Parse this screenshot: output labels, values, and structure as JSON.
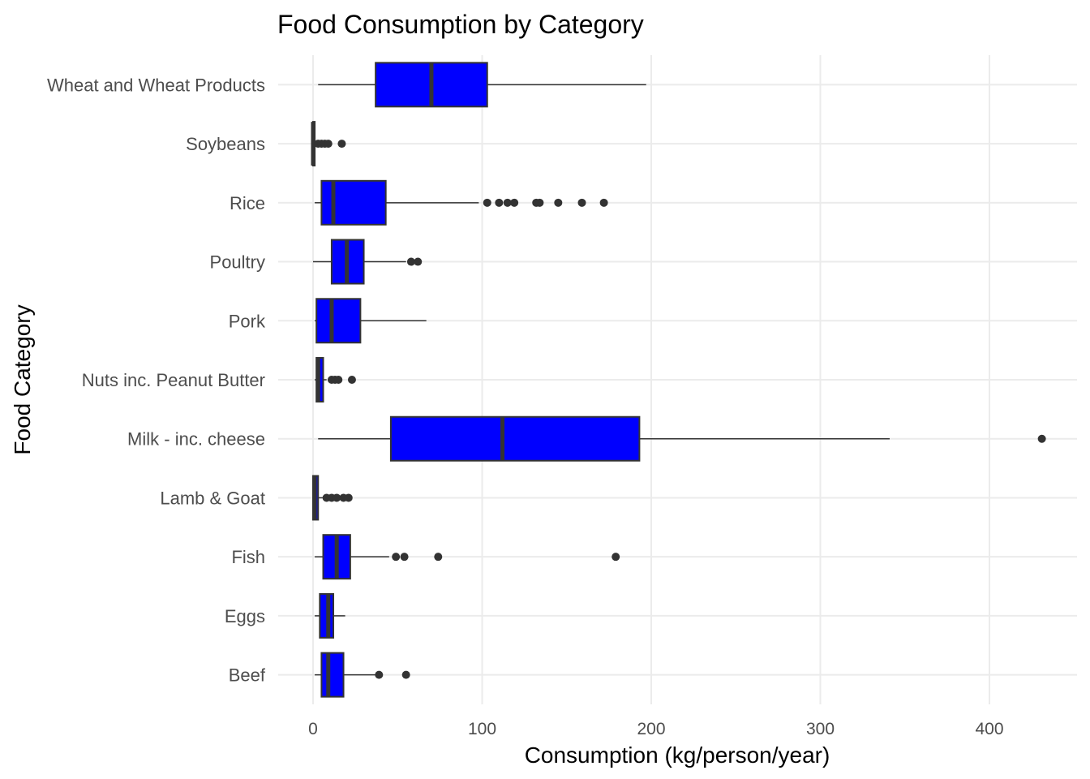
{
  "chart_data": {
    "type": "boxplot",
    "orientation": "horizontal",
    "title": "Food Consumption by Category",
    "xlabel": "Consumption (kg/person/year)",
    "ylabel": "Food Category",
    "xlim": [
      -10,
      452
    ],
    "xticks": [
      0,
      100,
      200,
      300,
      400
    ],
    "grid": true,
    "legend": "none",
    "colors": {
      "box_fill": "#0000ff",
      "box_stroke": "#333333",
      "grid_major": "#ebebeb",
      "grid_minor": "#f4f4f4"
    },
    "categories": [
      "Wheat and Wheat Products",
      "Soybeans",
      "Rice",
      "Poultry",
      "Pork",
      "Nuts inc. Peanut Butter",
      "Milk - inc. cheese",
      "Lamb & Goat",
      "Fish",
      "Eggs",
      "Beef"
    ],
    "boxes": [
      {
        "name": "Wheat and Wheat Products",
        "min": 3,
        "q1": 37,
        "median": 70,
        "q3": 103,
        "max": 197,
        "outliers": []
      },
      {
        "name": "Soybeans",
        "min": 0,
        "q1": 0,
        "median": 0,
        "q3": 1,
        "max": 2,
        "outliers": [
          3,
          5,
          7,
          9,
          17
        ]
      },
      {
        "name": "Rice",
        "min": 1,
        "q1": 5,
        "median": 12,
        "q3": 43,
        "max": 98,
        "outliers": [
          103,
          110,
          115,
          119,
          132,
          134,
          145,
          159,
          172
        ]
      },
      {
        "name": "Poultry",
        "min": 0,
        "q1": 11,
        "median": 20,
        "q3": 30,
        "max": 55,
        "outliers": [
          58,
          62
        ]
      },
      {
        "name": "Pork",
        "min": 1,
        "q1": 2,
        "median": 11,
        "q3": 28,
        "max": 67,
        "outliers": []
      },
      {
        "name": "Nuts inc. Peanut Butter",
        "min": 1,
        "q1": 2,
        "median": 3,
        "q3": 6,
        "max": 8,
        "outliers": [
          11,
          13,
          15,
          23
        ]
      },
      {
        "name": "Milk - inc. cheese",
        "min": 3,
        "q1": 46,
        "median": 112,
        "q3": 193,
        "max": 341,
        "outliers": [
          431
        ]
      },
      {
        "name": "Lamb & Goat",
        "min": 0,
        "q1": 0,
        "median": 1,
        "q3": 3,
        "max": 6,
        "outliers": [
          8,
          11,
          14,
          18,
          21
        ]
      },
      {
        "name": "Fish",
        "min": 1,
        "q1": 6,
        "median": 14,
        "q3": 22,
        "max": 45,
        "outliers": [
          49,
          54,
          74,
          179
        ]
      },
      {
        "name": "Eggs",
        "min": 1,
        "q1": 4,
        "median": 9,
        "q3": 12,
        "max": 19,
        "outliers": []
      },
      {
        "name": "Beef",
        "min": 1,
        "q1": 5,
        "median": 9,
        "q3": 18,
        "max": 37,
        "outliers": [
          39,
          55
        ]
      }
    ]
  }
}
